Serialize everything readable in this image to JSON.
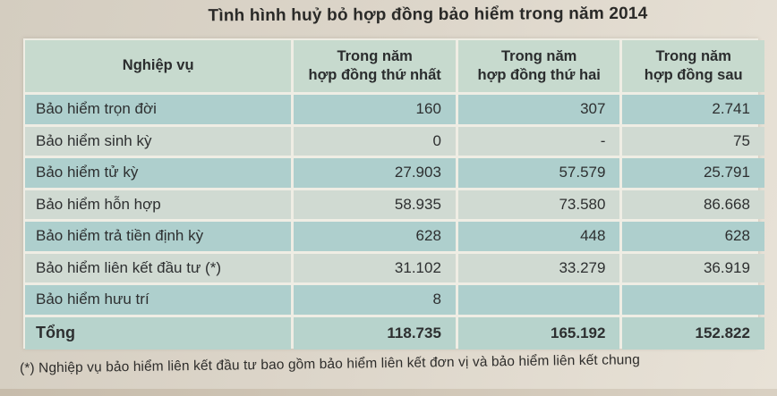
{
  "page": {
    "title": "Tình hình huỷ bỏ hợp đồng bảo hiểm trong năm 2014",
    "footnote": "(*) Nghiệp vụ bảo hiểm liên kết đầu tư bao gồm bảo hiểm liên kết đơn vị và bảo hiểm liên kết chung"
  },
  "table": {
    "headers": [
      "Nghiệp vụ",
      "Trong năm\nhợp đồng thứ nhất",
      "Trong năm\nhợp đồng thứ hai",
      "Trong năm\nhợp đồng sau"
    ],
    "rows": [
      {
        "label": "Bảo hiểm trọn đời",
        "values": [
          "160",
          "307",
          "2.741"
        ]
      },
      {
        "label": "Bảo hiểm sinh kỳ",
        "values": [
          "0",
          "-",
          "75"
        ]
      },
      {
        "label": "Bảo hiểm tử kỳ",
        "values": [
          "27.903",
          "57.579",
          "25.791"
        ]
      },
      {
        "label": "Bảo hiểm hỗn hợp",
        "values": [
          "58.935",
          "73.580",
          "86.668"
        ]
      },
      {
        "label": "Bảo hiểm trả tiền định kỳ",
        "values": [
          "628",
          "448",
          "628"
        ]
      },
      {
        "label": "Bảo hiểm liên kết đầu tư (*)",
        "values": [
          "31.102",
          "33.279",
          "36.919"
        ]
      },
      {
        "label": "Bảo hiểm hưu trí",
        "values": [
          "8",
          "",
          ""
        ]
      },
      {
        "label": "Tổng",
        "values": [
          "118.735",
          "165.192",
          "152.822"
        ]
      }
    ]
  },
  "colors": {
    "page_background": "#dcd5c9",
    "header_row": "#c7dace",
    "dark_row": "#aecfcd",
    "light_row": "#d0dad2",
    "total_row": "#b7d3cc",
    "separator": "#efede4",
    "text": "#2d2f30"
  }
}
